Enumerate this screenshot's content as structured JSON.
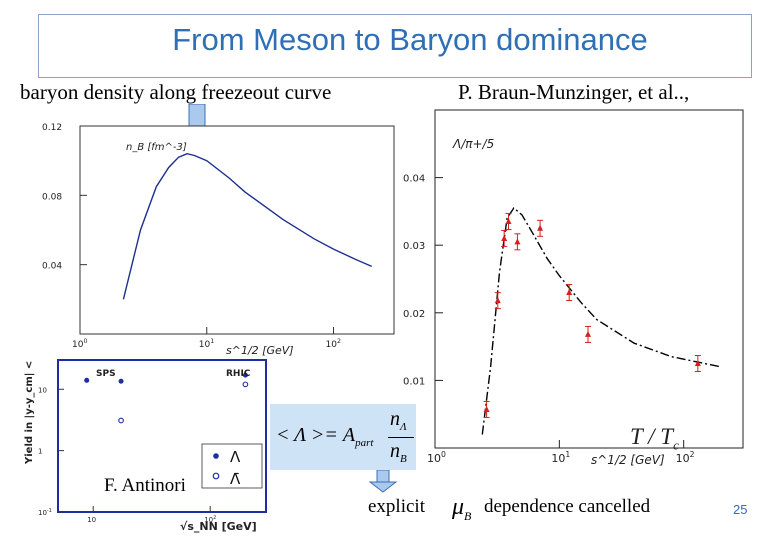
{
  "slide": {
    "title": "From Meson to Baryon dominance",
    "subtitle_left": "baryon density along freezeout curve",
    "subtitle_right": "P. Braun-Munzinger, et al..,",
    "author_note": "F. Antinori",
    "explicit_label": "explicit",
    "dependence_label": "dependence cancelled",
    "slide_number": "25"
  },
  "formula": {
    "lhs": "< Λ >= A",
    "part_sub": "part",
    "num": "n",
    "num_sub": "Λ",
    "den": "n",
    "den_sub": "B"
  },
  "mu_b": {
    "symbol": "μ",
    "sub": "B"
  },
  "t_tc": {
    "label": "T / T",
    "sub": "c"
  },
  "chart_data": [
    {
      "type": "line",
      "ylabel": "n_B [fm^-3]",
      "xlabel": "s^1/2 [GeV]",
      "x_scale": "log",
      "xlim": [
        1,
        300
      ],
      "ylim": [
        0,
        0.12
      ],
      "x_ticks": [
        "10^0",
        "10^1",
        "10^2"
      ],
      "y_ticks": [
        "0.04",
        "0.08",
        "0.12"
      ],
      "series": [
        {
          "x": [
            2.2,
            3,
            4,
            5,
            6,
            7,
            8,
            10,
            15,
            20,
            40,
            70,
            100,
            150,
            200
          ],
          "y": [
            0.02,
            0.06,
            0.085,
            0.096,
            0.102,
            0.104,
            0.103,
            0.1,
            0.09,
            0.082,
            0.066,
            0.055,
            0.049,
            0.043,
            0.039
          ]
        }
      ]
    },
    {
      "type": "scatter",
      "ylabel": "Λ/π+/5",
      "xlabel": "s^1/2 [GeV]",
      "x_scale": "log",
      "xlim": [
        1,
        300
      ],
      "ylim": [
        0,
        0.05
      ],
      "x_ticks": [
        "10^0",
        "10^1",
        "10^2"
      ],
      "y_ticks": [
        "0.01",
        "0.02",
        "0.03",
        "0.04"
      ],
      "series": [
        {
          "name": "data",
          "x": [
            2.6,
            3.2,
            3.6,
            3.9,
            4.6,
            7.0,
            12.0,
            17.0,
            130
          ],
          "y": [
            0.0057,
            0.0218,
            0.031,
            0.0335,
            0.0305,
            0.0325,
            0.023,
            0.0168,
            0.0125
          ]
        },
        {
          "name": "model",
          "x": [
            2.4,
            2.8,
            3.3,
            3.8,
            4.3,
            5,
            6,
            8,
            10,
            15,
            20,
            40,
            80,
            200
          ],
          "y": [
            0.002,
            0.012,
            0.026,
            0.034,
            0.0355,
            0.0345,
            0.032,
            0.028,
            0.0255,
            0.0215,
            0.019,
            0.0155,
            0.0135,
            0.012
          ]
        }
      ]
    },
    {
      "type": "scatter",
      "ylabel": "Yield in |y-y_cm| < 0.5",
      "xlabel": "√s_NN [GeV]",
      "x_scale": "log",
      "y_scale": "log",
      "xlim": [
        5,
        300
      ],
      "ylim": [
        0.1,
        30
      ],
      "x_ticks": [
        "10",
        "10^2"
      ],
      "y_ticks": [
        "10^-1",
        "1",
        "10"
      ],
      "annotations": [
        "SPS",
        "RHIC"
      ],
      "series": [
        {
          "name": "Λ",
          "x": [
            8.8,
            17.3,
            200
          ],
          "y": [
            14,
            13.5,
            17
          ]
        },
        {
          "name": "Λ̄",
          "x": [
            17.3,
            200
          ],
          "y": [
            3.1,
            12
          ]
        }
      ]
    }
  ]
}
